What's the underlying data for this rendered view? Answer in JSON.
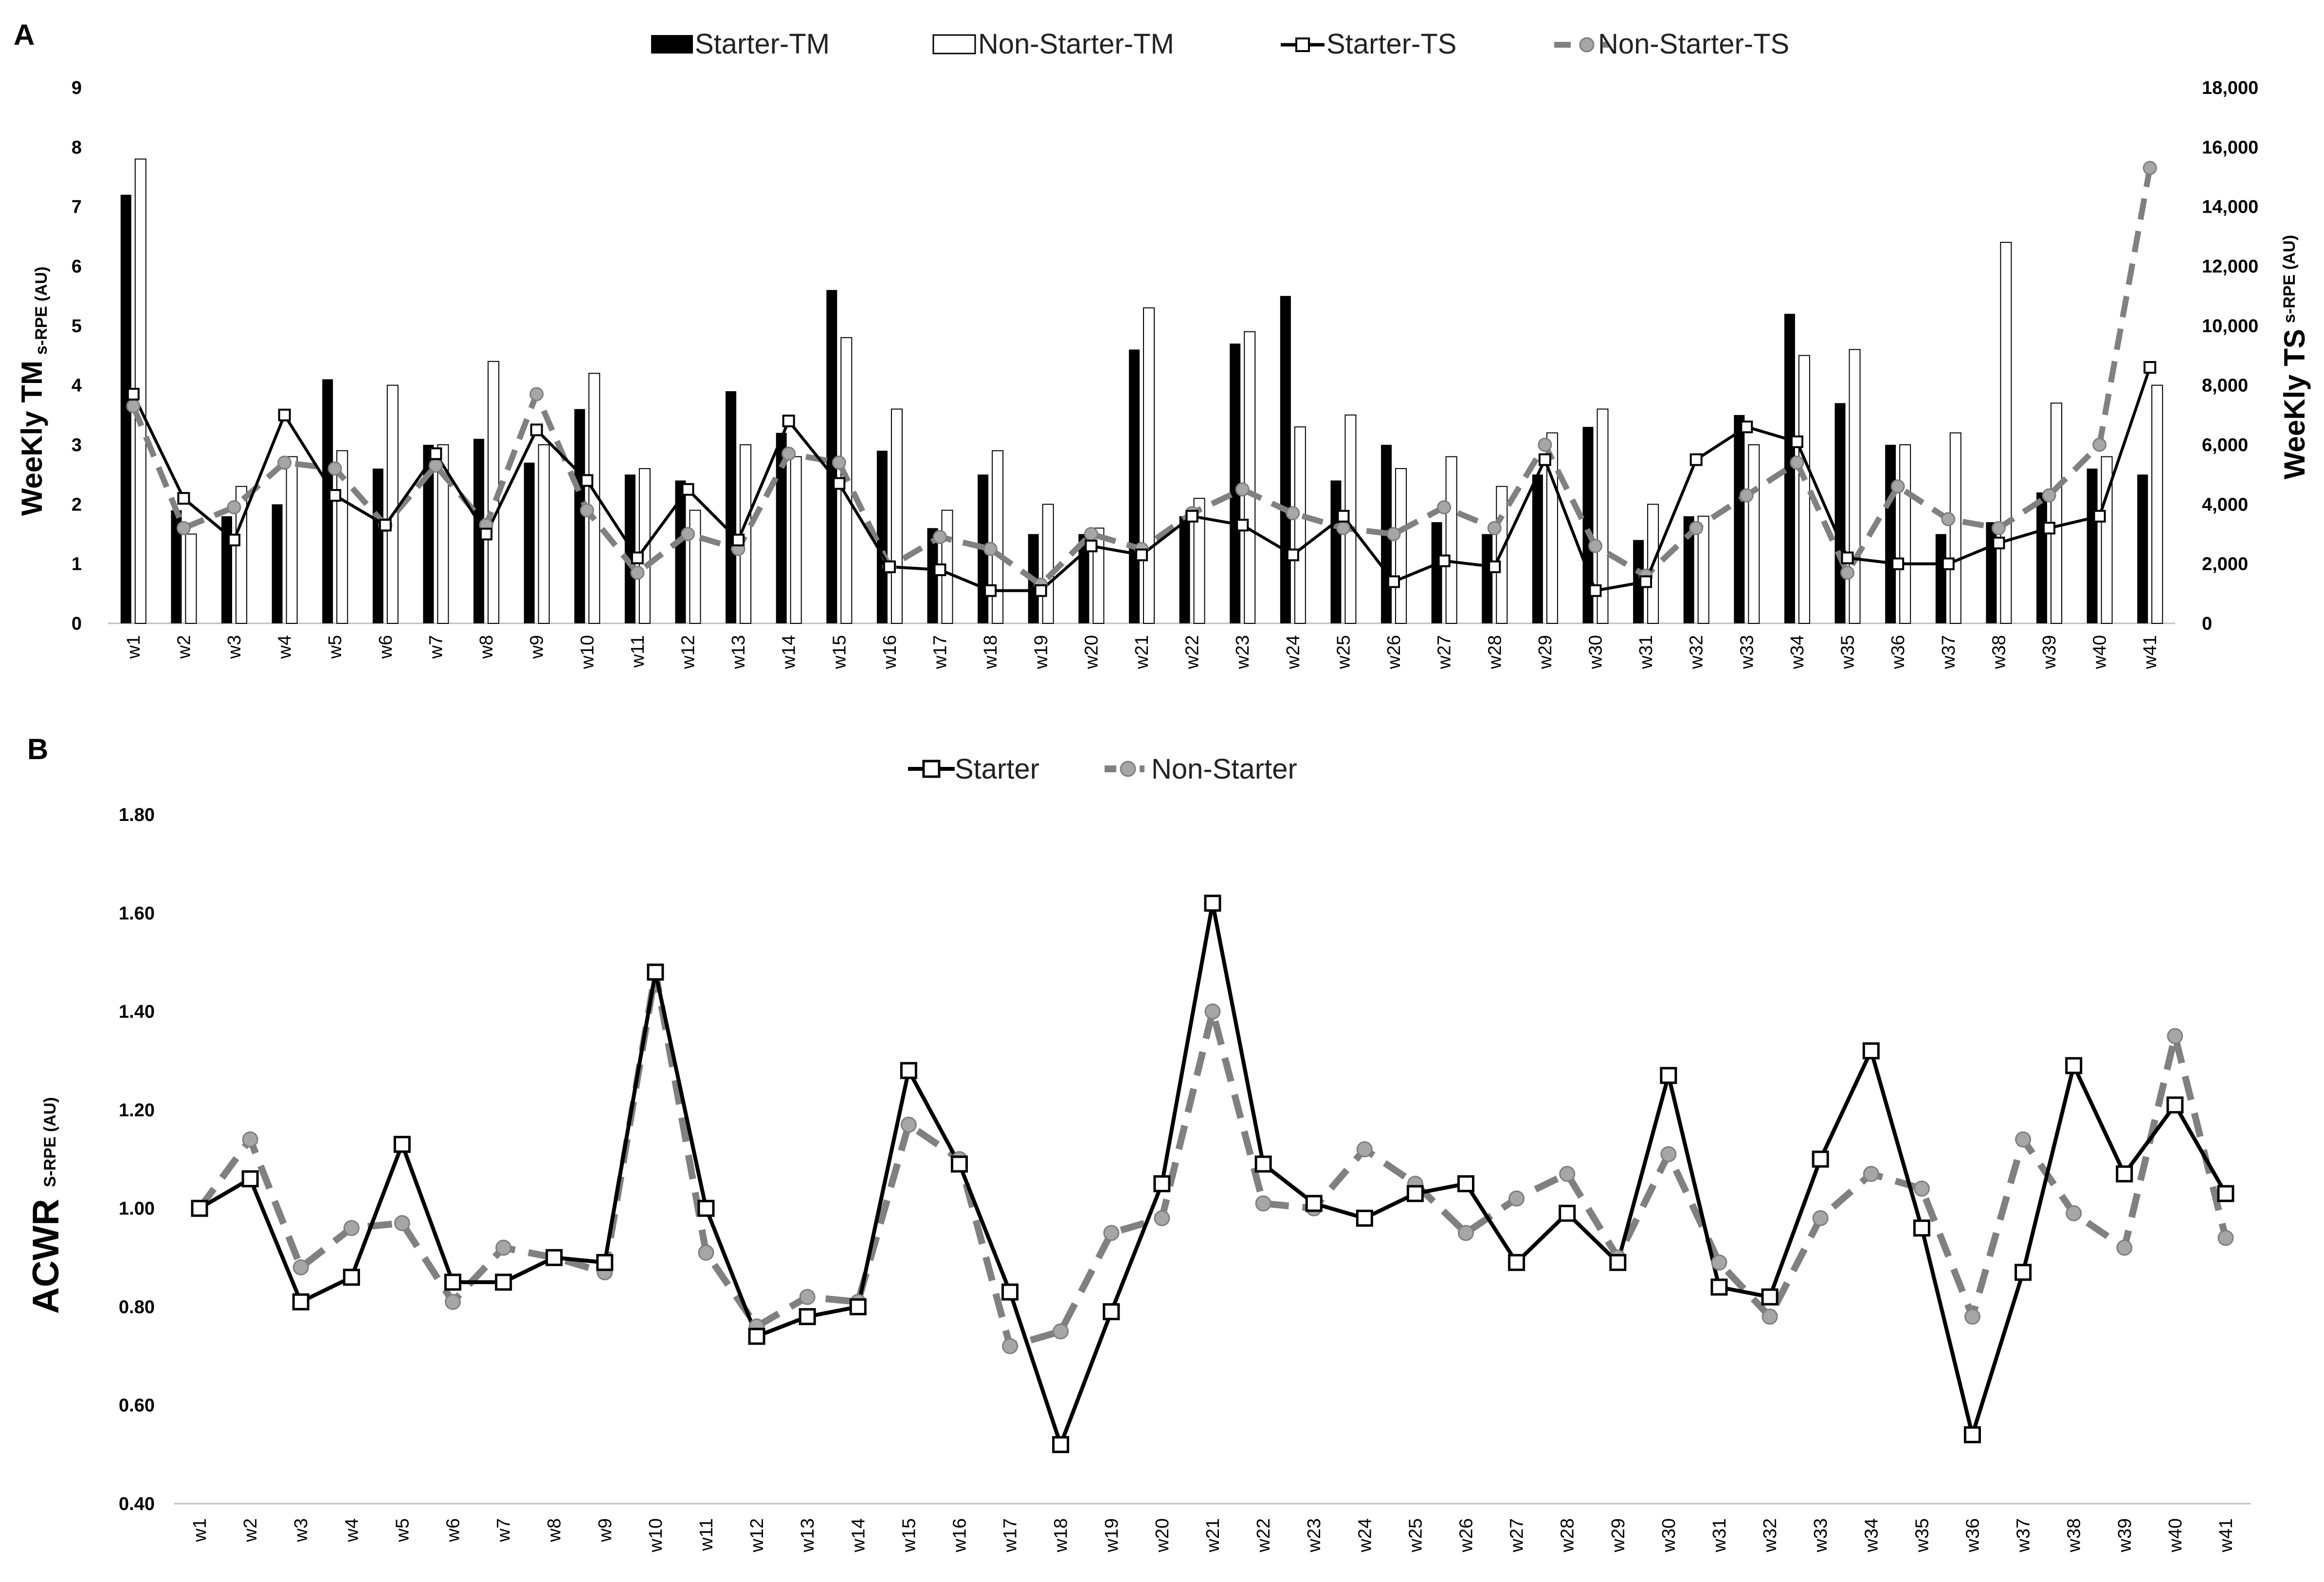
{
  "chart_data": [
    {
      "panel": "A",
      "type": "bar",
      "categories": [
        "w1",
        "w2",
        "w3",
        "w4",
        "w5",
        "w6",
        "w7",
        "w8",
        "w9",
        "w10",
        "w11",
        "w12",
        "w13",
        "w14",
        "w15",
        "w16",
        "w17",
        "w18",
        "w19",
        "w20",
        "w21",
        "w22",
        "w23",
        "w24",
        "w25",
        "w26",
        "w27",
        "w28",
        "w29",
        "w30",
        "w31",
        "w32",
        "w33",
        "w34",
        "w35",
        "w36",
        "w37",
        "w38",
        "w39",
        "w40",
        "w41"
      ],
      "ylabel": "WeeKly TM",
      "ylabel_sub": "s-RPE (AU)",
      "y2label": "WeeKly TS",
      "y2label_sub": "s-RPE (AU)",
      "ylim": [
        0,
        9
      ],
      "yticks": [
        "0",
        "1",
        "2",
        "3",
        "4",
        "5",
        "6",
        "7",
        "8",
        "9"
      ],
      "y2lim": [
        0,
        18000
      ],
      "y2ticks": [
        "0",
        "2,000",
        "4,000",
        "6,000",
        "8,000",
        "10,000",
        "12,000",
        "14,000",
        "16,000",
        "18,000"
      ],
      "legend_position": "top-center",
      "series": [
        {
          "name": "Starter-TM",
          "kind": "bar",
          "axis": "left",
          "color": "#000000",
          "values": [
            7.2,
            1.9,
            1.8,
            2.0,
            4.1,
            2.6,
            3.0,
            3.1,
            2.7,
            3.6,
            2.5,
            2.4,
            3.9,
            3.2,
            5.6,
            2.9,
            1.6,
            2.5,
            1.5,
            1.5,
            4.6,
            1.8,
            4.7,
            5.5,
            2.4,
            3.0,
            1.7,
            1.5,
            2.5,
            3.3,
            1.4,
            1.8,
            3.5,
            5.2,
            3.7,
            3.0,
            1.5,
            1.7,
            2.2,
            2.6,
            2.5
          ]
        },
        {
          "name": "Non-Starter-TM",
          "kind": "bar",
          "axis": "left",
          "color": "#ffffff",
          "values": [
            7.8,
            1.5,
            2.3,
            2.8,
            2.9,
            4.0,
            3.0,
            4.4,
            3.0,
            4.2,
            2.6,
            1.9,
            3.0,
            2.8,
            4.8,
            3.6,
            1.9,
            2.9,
            2.0,
            1.6,
            5.3,
            2.1,
            4.9,
            3.3,
            3.5,
            2.6,
            2.8,
            2.3,
            3.2,
            3.6,
            2.0,
            1.8,
            3.0,
            4.5,
            4.6,
            3.0,
            3.2,
            6.4,
            3.7,
            2.8,
            4.0
          ]
        },
        {
          "name": "Starter-TS",
          "kind": "line",
          "axis": "right",
          "color": "#000000",
          "marker": "square",
          "values": [
            7700,
            4200,
            2800,
            7000,
            4300,
            3300,
            5700,
            3000,
            6500,
            4800,
            2200,
            4500,
            2800,
            6800,
            4700,
            1900,
            1800,
            1100,
            1100,
            2600,
            2300,
            3600,
            3300,
            2300,
            3600,
            1400,
            2100,
            1900,
            5500,
            1100,
            1400,
            5500,
            6600,
            6100,
            2200,
            2000,
            2000,
            2700,
            3200,
            3600,
            8600
          ]
        },
        {
          "name": "Non-Starter-TS",
          "kind": "line",
          "axis": "right",
          "color": "#808080",
          "marker": "circle",
          "dashed": true,
          "values": [
            7300,
            3200,
            3900,
            5400,
            5200,
            3300,
            5300,
            3300,
            7700,
            3800,
            1700,
            3000,
            2500,
            5700,
            5400,
            1900,
            2900,
            2500,
            1300,
            3000,
            2500,
            3700,
            4500,
            3700,
            3200,
            3000,
            3900,
            3200,
            6000,
            2600,
            1600,
            3200,
            4300,
            5400,
            1700,
            4600,
            3500,
            3200,
            4300,
            6000,
            15300
          ]
        }
      ]
    },
    {
      "panel": "B",
      "type": "line",
      "categories": [
        "w1",
        "w2",
        "w3",
        "w4",
        "w5",
        "w6",
        "w7",
        "w8",
        "w9",
        "w10",
        "w11",
        "w12",
        "w13",
        "w14",
        "w15",
        "w16",
        "w17",
        "w18",
        "w19",
        "w20",
        "w21",
        "w22",
        "w23",
        "w24",
        "w25",
        "w26",
        "w27",
        "w28",
        "w29",
        "w30",
        "w31",
        "w32",
        "w33",
        "w34",
        "w35",
        "w36",
        "w37",
        "w38",
        "w39",
        "w40",
        "w41"
      ],
      "ylabel": "ACWR",
      "ylabel_sub": "S-RPE (AU)",
      "ylim": [
        0.4,
        1.8
      ],
      "yticks": [
        "0.40",
        "0.60",
        "0.80",
        "1.00",
        "1.20",
        "1.40",
        "1.60",
        "1.80"
      ],
      "legend_position": "top-center",
      "series": [
        {
          "name": "Starter",
          "color": "#000000",
          "marker": "square",
          "values": [
            1.0,
            1.06,
            0.81,
            0.86,
            1.13,
            0.85,
            0.85,
            0.9,
            0.89,
            1.48,
            1.0,
            0.74,
            0.78,
            0.8,
            1.28,
            1.09,
            0.83,
            0.52,
            0.79,
            1.05,
            1.62,
            1.09,
            1.01,
            0.98,
            1.03,
            1.05,
            0.89,
            0.99,
            0.89,
            1.27,
            0.84,
            0.82,
            1.1,
            1.32,
            0.96,
            0.54,
            0.87,
            1.29,
            1.07,
            1.21,
            1.03
          ]
        },
        {
          "name": "Non-Starter",
          "color": "#808080",
          "marker": "circle",
          "dashed": true,
          "values": [
            1.0,
            1.14,
            0.88,
            0.96,
            0.97,
            0.81,
            0.92,
            0.9,
            0.87,
            1.48,
            0.91,
            0.76,
            0.82,
            0.81,
            1.17,
            1.1,
            0.72,
            0.75,
            0.95,
            0.98,
            1.4,
            1.01,
            1.0,
            1.12,
            1.05,
            0.95,
            1.02,
            1.07,
            0.9,
            1.11,
            0.89,
            0.78,
            0.98,
            1.07,
            1.04,
            0.78,
            1.14,
            0.99,
            0.92,
            1.35,
            0.94
          ]
        }
      ]
    }
  ]
}
